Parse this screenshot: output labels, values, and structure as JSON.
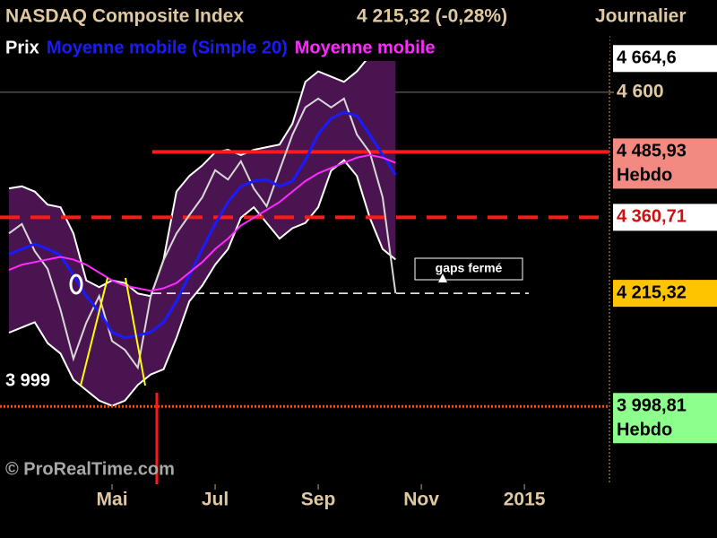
{
  "chart_data": {
    "type": "line",
    "title": "NASDAQ Composite Index",
    "price_label": "4 215,32 (-0,28%)",
    "period": "Journalier",
    "copyright": "© ProRealTime.com",
    "annotation": "gaps fermé",
    "xlim": [
      2.826,
      14.65
    ],
    "xticks": [
      {
        "value": 5,
        "label": "Mai"
      },
      {
        "value": 7,
        "label": "Jul"
      },
      {
        "value": 9,
        "label": "Sep"
      },
      {
        "value": 11,
        "label": "Nov"
      },
      {
        "value": 13,
        "label": "2015"
      }
    ],
    "ylim": [
      3850,
      4708
    ],
    "yticks": [
      {
        "value": 4600,
        "label": "4 600"
      }
    ],
    "grid": true,
    "x": [
      3,
      3.25,
      3.5,
      3.75,
      4,
      4.25,
      4.5,
      4.75,
      5,
      5.25,
      5.5,
      5.75,
      6,
      6.25,
      6.5,
      6.75,
      7,
      7.25,
      7.5,
      7.75,
      8,
      8.25,
      8.5,
      8.75,
      9,
      9.25,
      9.5,
      9.75,
      10,
      10.25,
      10.5
    ],
    "series": [
      {
        "name": "Prix",
        "color": "#d8d8d8",
        "values": [
          4330,
          4348,
          4296,
          4262,
          4184,
          4090,
          4159,
          4210,
          4124,
          4107,
          4073,
          4210,
          4279,
          4330,
          4365,
          4399,
          4451,
          4433,
          4468,
          4416,
          4382,
          4451,
          4519,
          4571,
          4588,
          4571,
          4588,
          4519,
          4485,
          4399,
          4215.32
        ]
      },
      {
        "name": "Moyenne mobile (Simple 20)",
        "color": "#1a1aff",
        "values": [
          4290,
          4300,
          4310,
          4300,
          4288,
          4250,
          4210,
          4180,
          4141,
          4130,
          4135,
          4141,
          4160,
          4200,
          4250,
          4300,
          4348,
          4390,
          4420,
          4430,
          4433,
          4420,
          4430,
          4470,
          4520,
          4550,
          4562,
          4555,
          4519,
          4480,
          4442
        ]
      },
      {
        "name": "Moyenne mobile",
        "color": "#ff2aff",
        "values": [
          4260,
          4270,
          4275,
          4280,
          4285,
          4280,
          4270,
          4255,
          4240,
          4230,
          4225,
          4220,
          4225,
          4235,
          4255,
          4275,
          4300,
          4320,
          4345,
          4360,
          4375,
          4390,
          4410,
          4430,
          4445,
          4455,
          4465,
          4475,
          4480,
          4475,
          4465
        ]
      }
    ],
    "bands": {
      "fill": "#4a1450",
      "line": "#ffffff",
      "upper": [
        4416,
        4420,
        4410,
        4385,
        4380,
        4330,
        4240,
        4227,
        4240,
        4235,
        4215,
        4210,
        4280,
        4410,
        4440,
        4460,
        4485,
        4490,
        4480,
        4490,
        4495,
        4500,
        4540,
        4620,
        4640,
        4630,
        4620,
        4640,
        4670,
        4680,
        4675
      ],
      "lower": [
        4140,
        4150,
        4160,
        4120,
        4100,
        4050,
        4030,
        4010,
        4000,
        4010,
        4040,
        4060,
        4070,
        4130,
        4200,
        4230,
        4270,
        4300,
        4360,
        4380,
        4350,
        4320,
        4340,
        4350,
        4380,
        4450,
        4470,
        4440,
        4360,
        4300,
        4280
      ]
    },
    "price_boxes": [
      {
        "value": 4664.6,
        "label": "4 664,6",
        "bg": "#ffffff",
        "fg": "#000000"
      },
      {
        "value": 4485.93,
        "label": "4 485,93",
        "note": "Hebdo",
        "bg": "#f28a82",
        "fg": "#000000",
        "line": "solid",
        "line_color": "#ff1a1a"
      },
      {
        "value": 4360.71,
        "label": "4 360,71",
        "bg": "#ffffff",
        "fg": "#d01010",
        "line": "dashed",
        "line_color": "#ff1a1a"
      },
      {
        "value": 4215.32,
        "label": "4 215,32",
        "bg": "#ffc400",
        "fg": "#000000",
        "line": "dashed",
        "line_color": "#ffffff"
      },
      {
        "value": 3998.81,
        "label": "3 998,81",
        "note": "Hebdo",
        "bg": "#8cff8c",
        "fg": "#000000",
        "line": "dotted",
        "line_color": "#ff4a00"
      }
    ],
    "left_label": {
      "value": 3999,
      "label": "3 999"
    }
  }
}
